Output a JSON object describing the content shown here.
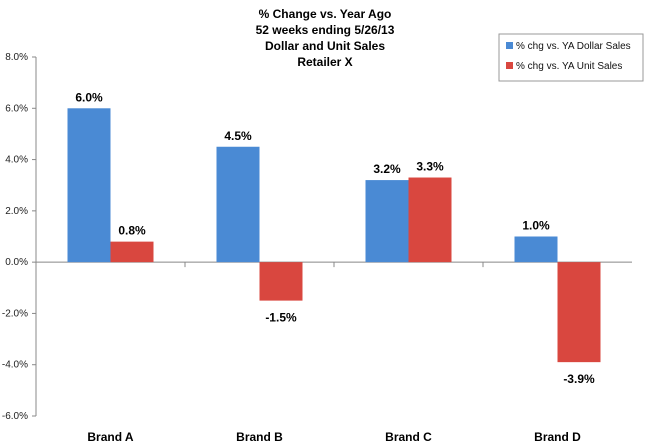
{
  "chart_data": {
    "type": "bar",
    "title_lines": [
      "% Change vs. Year Ago",
      "52 weeks ending 5/26/13",
      "Dollar and Unit Sales",
      "Retailer X"
    ],
    "categories": [
      "Brand A",
      "Brand B",
      "Brand C",
      "Brand D"
    ],
    "series": [
      {
        "name": "% chg vs. YA Dollar Sales",
        "values": [
          6.0,
          4.5,
          3.2,
          1.0
        ],
        "labels": [
          "6.0%",
          "4.5%",
          "3.2%",
          "1.0%"
        ],
        "color": "#4a8ad4"
      },
      {
        "name": "% chg vs. YA Unit Sales",
        "values": [
          0.8,
          -1.5,
          3.3,
          -3.9
        ],
        "labels": [
          "0.8%",
          "-1.5%",
          "3.3%",
          "-3.9%"
        ],
        "color": "#d9473f"
      }
    ],
    "ylim": [
      -6.0,
      8.0
    ],
    "yticks": [
      8.0,
      6.0,
      4.0,
      2.0,
      0.0,
      -2.0,
      -4.0,
      -6.0
    ],
    "ytick_labels": [
      "8.0%",
      "6.0%",
      "4.0%",
      "2.0%",
      "0.0%",
      "-2.0%",
      "-4.0%",
      "-6.0%"
    ],
    "grid": false,
    "legend_position": "top-right"
  }
}
